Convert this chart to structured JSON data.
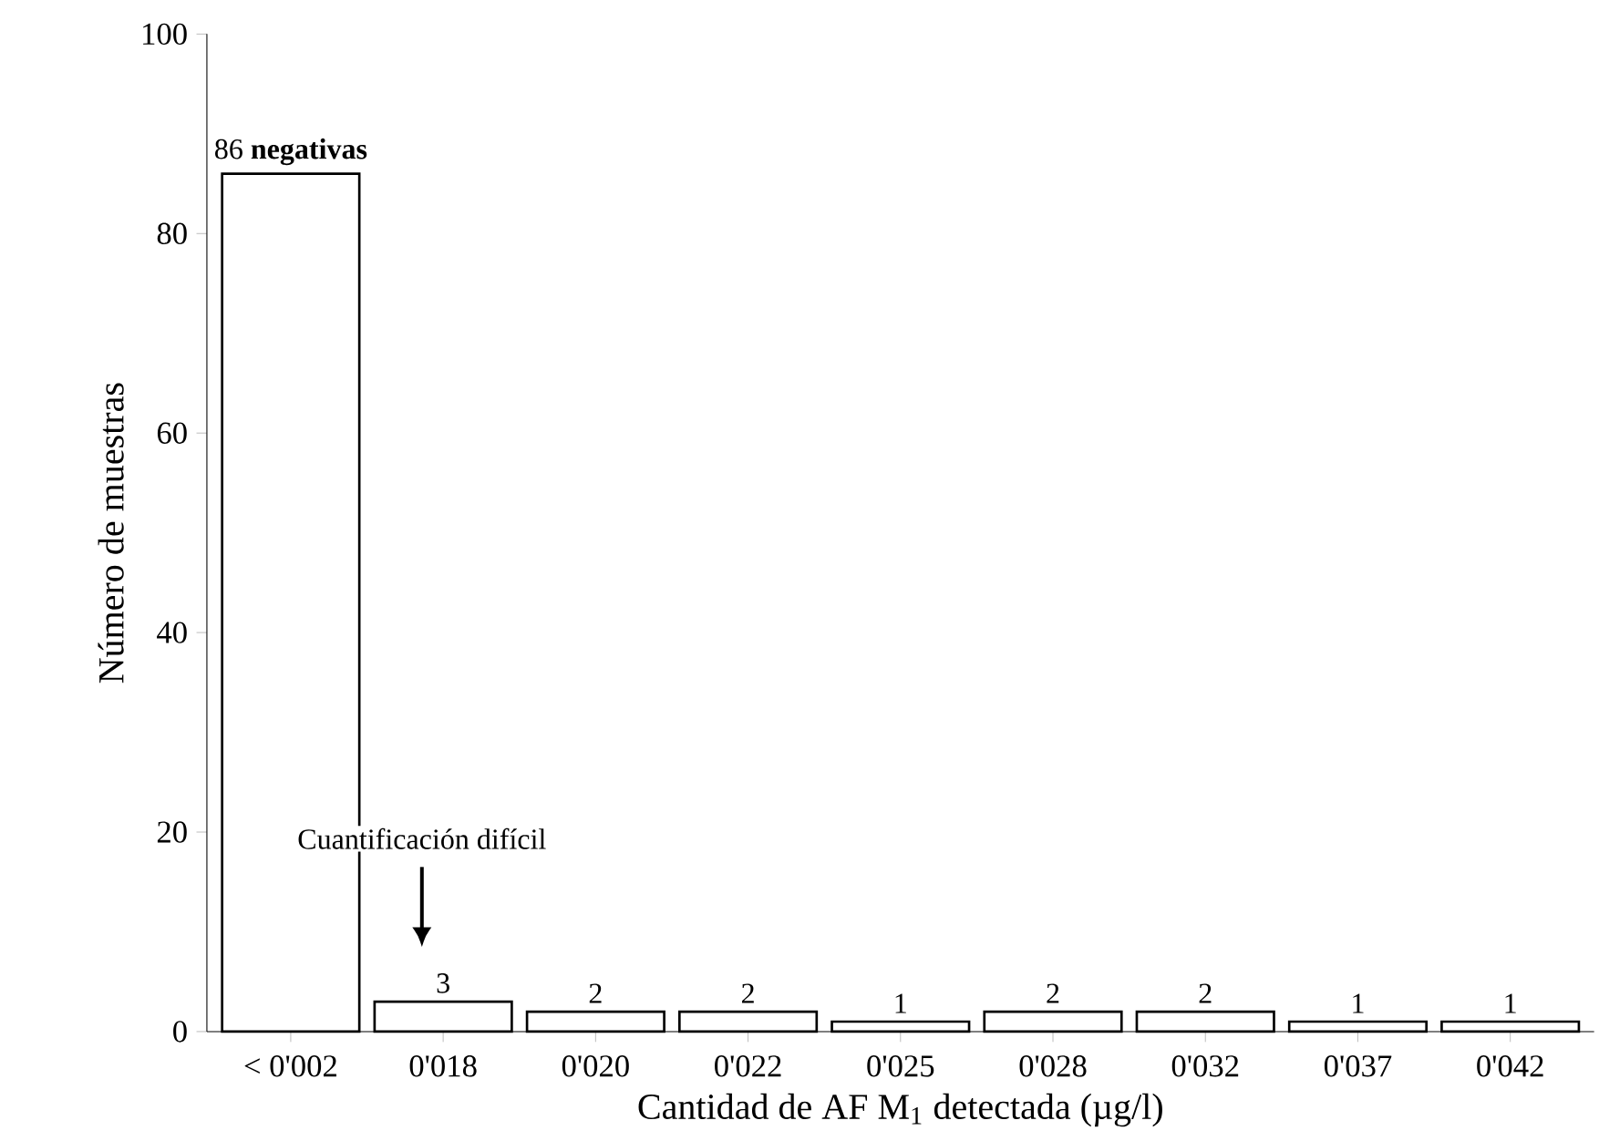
{
  "chart_data": {
    "type": "bar",
    "xlabel": "Cantidad de AF M$_{1}$ detectada (µg/l)",
    "ylabel": "Número de muestras",
    "categories": [
      "< 0'002",
      "0'018",
      "0'020",
      "0'022",
      "0'025",
      "0'028",
      "0'032",
      "0'037",
      "0'042"
    ],
    "values": [
      86,
      3,
      2,
      2,
      1,
      2,
      2,
      1,
      1
    ],
    "value_labels": [
      "86 **negativas**",
      "3",
      "2",
      "2",
      "1",
      "2",
      "2",
      "1",
      "1"
    ],
    "color": "#000000",
    "annotations": [
      "Cuantificación difícil"
    ],
    "ylim": [
      0,
      100
    ],
    "yticks": [
      0,
      20,
      40,
      60,
      80,
      100
    ],
    "grid": false
  }
}
